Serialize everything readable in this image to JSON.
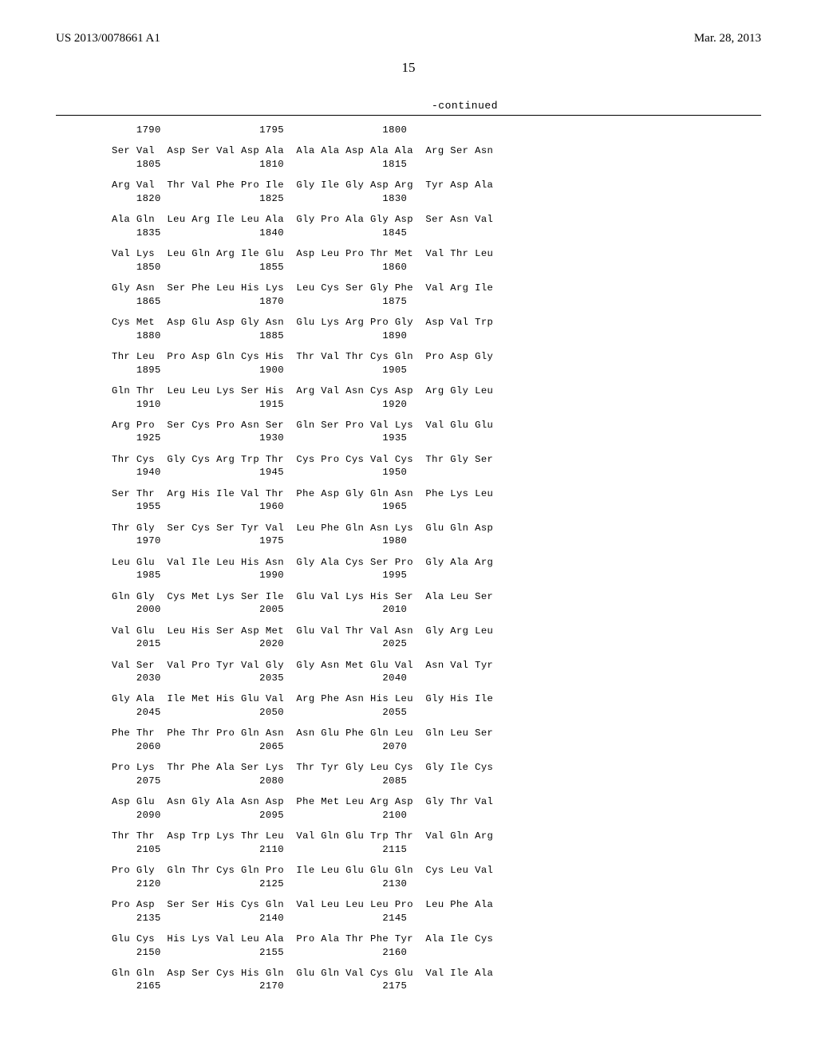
{
  "header": {
    "pub_number": "US 2013/0078661 A1",
    "date": "Mar. 28, 2013"
  },
  "page_number": "15",
  "continued_label": "-continued",
  "sequence_rows": [
    {
      "line1": "    1790                1795                1800",
      "line2": ""
    },
    {
      "line1": "Ser Val  Asp Ser Val Asp Ala  Ala Ala Asp Ala Ala  Arg Ser Asn",
      "line2": "    1805                1810                1815"
    },
    {
      "line1": "Arg Val  Thr Val Phe Pro Ile  Gly Ile Gly Asp Arg  Tyr Asp Ala",
      "line2": "    1820                1825                1830"
    },
    {
      "line1": "Ala Gln  Leu Arg Ile Leu Ala  Gly Pro Ala Gly Asp  Ser Asn Val",
      "line2": "    1835                1840                1845"
    },
    {
      "line1": "Val Lys  Leu Gln Arg Ile Glu  Asp Leu Pro Thr Met  Val Thr Leu",
      "line2": "    1850                1855                1860"
    },
    {
      "line1": "Gly Asn  Ser Phe Leu His Lys  Leu Cys Ser Gly Phe  Val Arg Ile",
      "line2": "    1865                1870                1875"
    },
    {
      "line1": "Cys Met  Asp Glu Asp Gly Asn  Glu Lys Arg Pro Gly  Asp Val Trp",
      "line2": "    1880                1885                1890"
    },
    {
      "line1": "Thr Leu  Pro Asp Gln Cys His  Thr Val Thr Cys Gln  Pro Asp Gly",
      "line2": "    1895                1900                1905"
    },
    {
      "line1": "Gln Thr  Leu Leu Lys Ser His  Arg Val Asn Cys Asp  Arg Gly Leu",
      "line2": "    1910                1915                1920"
    },
    {
      "line1": "Arg Pro  Ser Cys Pro Asn Ser  Gln Ser Pro Val Lys  Val Glu Glu",
      "line2": "    1925                1930                1935"
    },
    {
      "line1": "Thr Cys  Gly Cys Arg Trp Thr  Cys Pro Cys Val Cys  Thr Gly Ser",
      "line2": "    1940                1945                1950"
    },
    {
      "line1": "Ser Thr  Arg His Ile Val Thr  Phe Asp Gly Gln Asn  Phe Lys Leu",
      "line2": "    1955                1960                1965"
    },
    {
      "line1": "Thr Gly  Ser Cys Ser Tyr Val  Leu Phe Gln Asn Lys  Glu Gln Asp",
      "line2": "    1970                1975                1980"
    },
    {
      "line1": "Leu Glu  Val Ile Leu His Asn  Gly Ala Cys Ser Pro  Gly Ala Arg",
      "line2": "    1985                1990                1995"
    },
    {
      "line1": "Gln Gly  Cys Met Lys Ser Ile  Glu Val Lys His Ser  Ala Leu Ser",
      "line2": "    2000                2005                2010"
    },
    {
      "line1": "Val Glu  Leu His Ser Asp Met  Glu Val Thr Val Asn  Gly Arg Leu",
      "line2": "    2015                2020                2025"
    },
    {
      "line1": "Val Ser  Val Pro Tyr Val Gly  Gly Asn Met Glu Val  Asn Val Tyr",
      "line2": "    2030                2035                2040"
    },
    {
      "line1": "Gly Ala  Ile Met His Glu Val  Arg Phe Asn His Leu  Gly His Ile",
      "line2": "    2045                2050                2055"
    },
    {
      "line1": "Phe Thr  Phe Thr Pro Gln Asn  Asn Glu Phe Gln Leu  Gln Leu Ser",
      "line2": "    2060                2065                2070"
    },
    {
      "line1": "Pro Lys  Thr Phe Ala Ser Lys  Thr Tyr Gly Leu Cys  Gly Ile Cys",
      "line2": "    2075                2080                2085"
    },
    {
      "line1": "Asp Glu  Asn Gly Ala Asn Asp  Phe Met Leu Arg Asp  Gly Thr Val",
      "line2": "    2090                2095                2100"
    },
    {
      "line1": "Thr Thr  Asp Trp Lys Thr Leu  Val Gln Glu Trp Thr  Val Gln Arg",
      "line2": "    2105                2110                2115"
    },
    {
      "line1": "Pro Gly  Gln Thr Cys Gln Pro  Ile Leu Glu Glu Gln  Cys Leu Val",
      "line2": "    2120                2125                2130"
    },
    {
      "line1": "Pro Asp  Ser Ser His Cys Gln  Val Leu Leu Leu Pro  Leu Phe Ala",
      "line2": "    2135                2140                2145"
    },
    {
      "line1": "Glu Cys  His Lys Val Leu Ala  Pro Ala Thr Phe Tyr  Ala Ile Cys",
      "line2": "    2150                2155                2160"
    },
    {
      "line1": "Gln Gln  Asp Ser Cys His Gln  Glu Gln Val Cys Glu  Val Ile Ala",
      "line2": "    2165                2170                2175"
    }
  ]
}
